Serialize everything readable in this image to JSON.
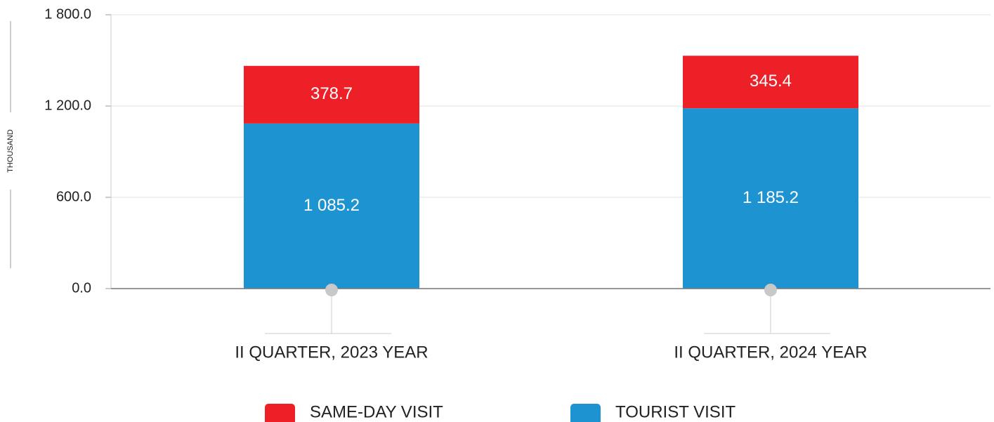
{
  "chart_data": {
    "type": "bar",
    "stacked": true,
    "y_label": "THOUSAND",
    "categories": [
      "II QUARTER, 2023 YEAR",
      "II QUARTER, 2024 YEAR"
    ],
    "series": [
      {
        "name": "SAME-DAY VISIT",
        "color": "#ee2027",
        "values": [
          378.7,
          345.4
        ],
        "value_labels": [
          "378.7",
          "345.4"
        ]
      },
      {
        "name": "TOURIST VISIT",
        "color": "#1e93d2",
        "values": [
          1085.2,
          1185.2
        ],
        "value_labels": [
          "1 085.2",
          "1 185.2"
        ]
      }
    ],
    "ylim": [
      0,
      1800
    ],
    "yticks": [
      {
        "value": 0,
        "label": "0.0"
      },
      {
        "value": 600,
        "label": "600.0"
      },
      {
        "value": 1200,
        "label": "1 200.0"
      },
      {
        "value": 1800,
        "label": "1 800.0"
      }
    ],
    "grid": true
  }
}
